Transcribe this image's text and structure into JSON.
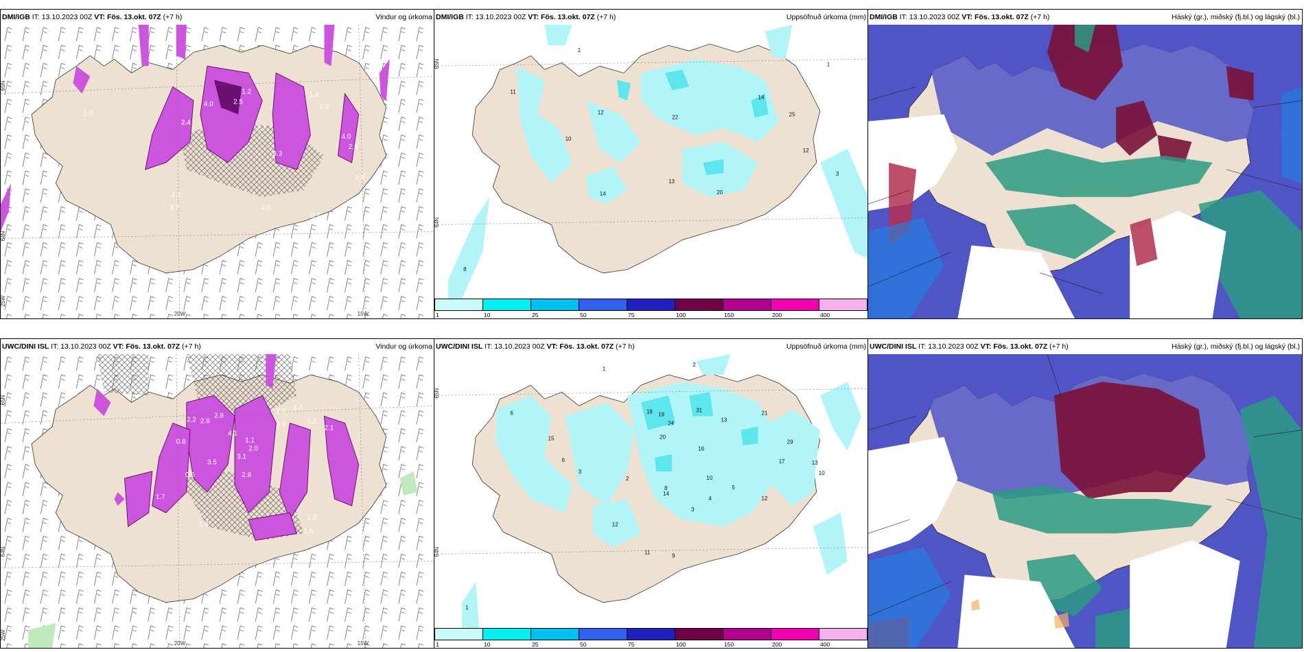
{
  "panels": {
    "p1": {
      "model": "DMI/IGB",
      "it_label": "IT:",
      "it": "13.10.2023 00Z",
      "vt_label": "VT:",
      "vt": "Fös. 13.okt. 07Z",
      "lead": "(+7 h)",
      "product": "Vindur og úrkoma",
      "axes": {
        "lat1": "65N",
        "lat2": "64N",
        "lat3": "25W",
        "lon1": "20W",
        "lon2": "15W"
      },
      "values": [
        "2.4",
        "2.1",
        "1.0",
        "3.7",
        "2.0",
        "3.3",
        "4.0",
        "2.8",
        "2.7",
        "2.5",
        "1.4",
        "1.3",
        "4.0",
        "2.8",
        "0.7",
        "1.2",
        "2.4"
      ]
    },
    "p2": {
      "model": "DMI/IGB",
      "it_label": "IT:",
      "it": "13.10.2023 00Z",
      "vt_label": "VT:",
      "vt": "Fös. 13.okt. 07Z",
      "lead": "(+7 h)",
      "product": "Uppsöfnuð úrkoma (mm)",
      "axes": {
        "lat1": "65N",
        "lat2": "64N"
      },
      "values": [
        "1",
        "11",
        "12",
        "10",
        "22",
        "14",
        "25",
        "12",
        "13",
        "14",
        "20",
        "8",
        "1",
        "3"
      ]
    },
    "p3": {
      "model": "DMI/IGB",
      "it_label": "IT:",
      "it": "13.10.2023 00Z",
      "vt_label": "VT:",
      "vt": "Fös. 13.okt. 07Z",
      "lead": "(+7 h)",
      "product": "Háský (gr.), miðský (fj.bl.) og lágský (bl.)"
    },
    "p4": {
      "model": "UWC/DINI ISL",
      "it_label": "IT:",
      "it": "13.10.2023 00Z",
      "vt_label": "VT:",
      "vt": "Fös. 13.okt. 07Z",
      "lead": "(+7 h)",
      "product": "Vindur og úrkoma",
      "axes": {
        "lat1": "65N",
        "lat2": "64N",
        "lat3": "25W",
        "lon1": "20W",
        "lon2": "15W"
      },
      "values": [
        "2.9",
        "2.8",
        "3.5",
        "2.2",
        "1.4",
        "3.9",
        "2.6",
        "1.2",
        "2.1",
        "4.1",
        "1.1",
        "0.8",
        "3.1",
        "2.0",
        "1.4",
        "1.6",
        "1.7",
        "0.6",
        "2.8",
        "1.3"
      ]
    },
    "p5": {
      "model": "UWC/DINI ISL",
      "it_label": "IT:",
      "it": "13.10.2023 00Z",
      "vt_label": "VT:",
      "vt": "Fös. 13.okt. 07Z",
      "lead": "(+7 h)",
      "product": "Uppsöfnuð úrkoma (mm)",
      "axes": {
        "lat1": "65N",
        "lat2": "64N"
      },
      "values": [
        "1",
        "2",
        "6",
        "15",
        "18",
        "19",
        "24",
        "31",
        "13",
        "21",
        "29",
        "17",
        "13",
        "10",
        "16",
        "8",
        "10",
        "12",
        "5",
        "4",
        "3",
        "2",
        "14",
        "12",
        "9",
        "1",
        "3",
        "11",
        "6",
        "20"
      ]
    },
    "p6": {
      "model": "UWC/DINI ISL",
      "it_label": "IT:",
      "it": "13.10.2023 00Z",
      "vt_label": "VT:",
      "vt": "Fös. 13.okt. 07Z",
      "lead": "(+7 h)",
      "product": "Háský (gr.), miðský (fj.bl.) og lágský (bl.)"
    }
  },
  "colorbar": {
    "colors": [
      "#c8fafa",
      "#00f0f0",
      "#00c0f0",
      "#3060f0",
      "#2020c0",
      "#700048",
      "#b00090",
      "#f000b0",
      "#f5b0f0"
    ],
    "ticks": [
      "1",
      "10",
      "25",
      "50",
      "75",
      "100",
      "150",
      "200",
      "400"
    ]
  },
  "palette": {
    "land": "#efe1d2",
    "precip": "#cc55dd",
    "precip_dark": "#6a1070",
    "cyan": "#b2f5f8",
    "cyan2": "#5ee6ee",
    "high_cloud": "#7a1236",
    "mid_cloud": "#5055c6",
    "low_cloud": "#2b9a82"
  }
}
